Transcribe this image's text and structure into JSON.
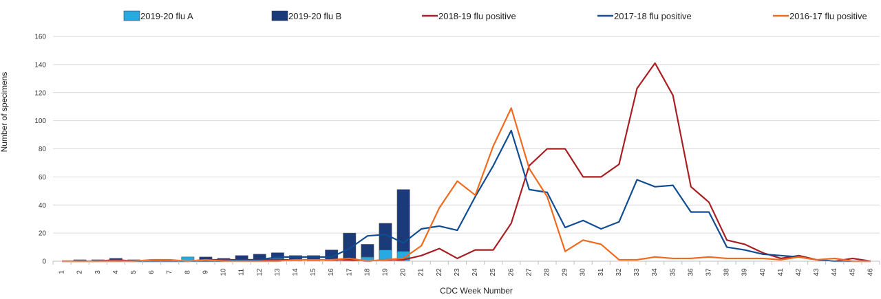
{
  "chart_data": {
    "type": "bar",
    "title": "",
    "xlabel": "CDC Week Number",
    "ylabel": "Number of specimens",
    "ylim": [
      0,
      160
    ],
    "yticks": [
      0,
      20,
      40,
      60,
      80,
      100,
      120,
      140,
      160
    ],
    "grid": true,
    "legend_position": "top",
    "categories": [
      "1",
      "2",
      "3",
      "4",
      "5",
      "6",
      "7",
      "8",
      "9",
      "10",
      "11",
      "12",
      "13",
      "14",
      "15",
      "16",
      "17",
      "18",
      "19",
      "20",
      "21",
      "22",
      "23",
      "24",
      "25",
      "26",
      "27",
      "28",
      "29",
      "30",
      "31",
      "32",
      "33",
      "34",
      "35",
      "36",
      "37",
      "38",
      "39",
      "40",
      "41",
      "42",
      "43",
      "44",
      "45",
      "46"
    ],
    "bars": [
      {
        "name": "2019-20 flu A",
        "color": "#29a9e1",
        "values": [
          0,
          0,
          0,
          0,
          0,
          0,
          0,
          3,
          1,
          0,
          1,
          1,
          2,
          1,
          1,
          1,
          1,
          3,
          8,
          7,
          null,
          null,
          null,
          null,
          null,
          null,
          null,
          null,
          null,
          null,
          null,
          null,
          null,
          null,
          null,
          null,
          null,
          null,
          null,
          null,
          null,
          null,
          null,
          null,
          null,
          null
        ]
      },
      {
        "name": "2019-20 flu B",
        "color": "#1b3a7a",
        "values": [
          0,
          1,
          1,
          2,
          1,
          0,
          0,
          0,
          2,
          2,
          3,
          4,
          4,
          3,
          3,
          7,
          19,
          9,
          19,
          44,
          null,
          null,
          null,
          null,
          null,
          null,
          null,
          null,
          null,
          null,
          null,
          null,
          null,
          null,
          null,
          null,
          null,
          null,
          null,
          null,
          null,
          null,
          null,
          null,
          null,
          null
        ]
      }
    ],
    "lines": [
      {
        "name": "2018-19 flu positive",
        "color": "#a81e22",
        "values": [
          0,
          0,
          0,
          1,
          0,
          0,
          0,
          0,
          1,
          1,
          1,
          1,
          1,
          1,
          1,
          1,
          1,
          0,
          1,
          1,
          4,
          9,
          2,
          8,
          8,
          27,
          68,
          80,
          80,
          60,
          60,
          69,
          123,
          141,
          118,
          53,
          42,
          15,
          12,
          6,
          2,
          4,
          1,
          0,
          2,
          0
        ]
      },
      {
        "name": "2017-18 flu positive",
        "color": "#0f4c92",
        "values": [
          0,
          0,
          0,
          0,
          0,
          0,
          0,
          0,
          0,
          0,
          1,
          1,
          3,
          3,
          3,
          3,
          9,
          18,
          19,
          13,
          23,
          25,
          22,
          46,
          68,
          93,
          51,
          49,
          24,
          29,
          23,
          28,
          58,
          53,
          54,
          35,
          35,
          10,
          8,
          5,
          4,
          3,
          1,
          0,
          0,
          0
        ]
      },
      {
        "name": "2016-17 flu positive",
        "color": "#f06a1e",
        "values": [
          0,
          0,
          0,
          0,
          0,
          1,
          1,
          0,
          1,
          0,
          0,
          0,
          0,
          1,
          1,
          1,
          2,
          0,
          1,
          2,
          11,
          38,
          57,
          47,
          82,
          109,
          66,
          46,
          7,
          15,
          12,
          1,
          1,
          3,
          2,
          2,
          3,
          2,
          2,
          2,
          1,
          3,
          1,
          2,
          0,
          0
        ]
      }
    ]
  }
}
